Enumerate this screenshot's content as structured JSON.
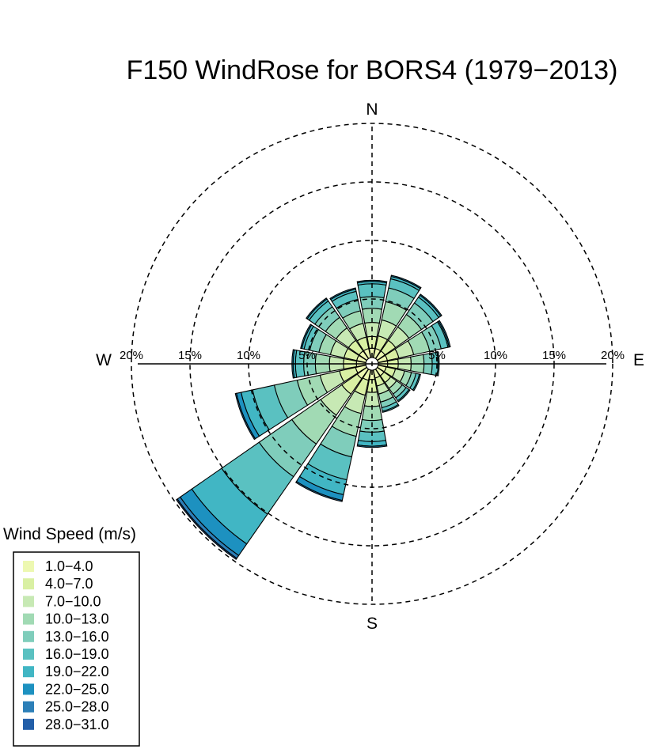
{
  "title": "F150 WindRose for BORS4 (1979−2013)",
  "compass": {
    "n": "N",
    "e": "E",
    "s": "S",
    "w": "W"
  },
  "chart_data": {
    "type": "windrose",
    "title": "F150 WindRose for BORS4 (1979−2013)",
    "radial_unit": "% frequency",
    "rings": [
      {
        "value": 5,
        "label": "5%"
      },
      {
        "value": 10,
        "label": "10%"
      },
      {
        "value": 15,
        "label": "15%"
      },
      {
        "value": 20,
        "label": "20%"
      }
    ],
    "directions": [
      "N",
      "NNE",
      "NE",
      "ENE",
      "E",
      "ESE",
      "SE",
      "SSE",
      "S",
      "SSW",
      "SW",
      "WSW",
      "W",
      "WNW",
      "NW",
      "NNW"
    ],
    "legend_title": "Wind Speed (m/s)",
    "bins": [
      "1.0−4.0",
      "4.0−7.0",
      "7.0−10.0",
      "10.0−13.0",
      "13.0−16.0",
      "16.0−19.0",
      "19.0−22.0",
      "22.0−25.0",
      "25.0−28.0",
      "28.0−31.0"
    ],
    "colors": [
      "#edf8b1",
      "#d9f0a3",
      "#c7e9b4",
      "#a1dab4",
      "#7fcdbb",
      "#5ac1c1",
      "#41b6c4",
      "#1d91c0",
      "#2c7fb8",
      "#225ea8"
    ],
    "cumulative": [
      [
        0.8,
        1.8,
        3.0,
        4.2,
        5.2,
        6.3,
        6.5,
        6.6,
        6.6,
        6.6
      ],
      [
        0.8,
        1.9,
        3.3,
        4.9,
        6.1,
        6.9,
        7.1,
        7.2,
        7.2,
        7.2
      ],
      [
        0.8,
        1.9,
        3.3,
        4.6,
        5.8,
        6.4,
        6.6,
        6.7,
        6.7,
        6.7
      ],
      [
        0.8,
        1.8,
        3.1,
        4.5,
        5.5,
        6.1,
        6.2,
        6.3,
        6.3,
        6.3
      ],
      [
        0.8,
        1.7,
        2.8,
        3.9,
        4.6,
        5.1,
        5.2,
        5.2,
        5.2,
        5.2
      ],
      [
        0.7,
        1.5,
        2.3,
        2.9,
        3.3,
        3.6,
        3.7,
        3.7,
        3.7,
        3.7
      ],
      [
        0.7,
        1.4,
        2.0,
        2.6,
        3.0,
        3.3,
        3.4,
        3.4,
        3.4,
        3.4
      ],
      [
        0.7,
        1.4,
        2.1,
        2.8,
        3.3,
        3.6,
        3.7,
        3.7,
        3.7,
        3.7
      ],
      [
        0.8,
        1.9,
        3.1,
        4.3,
        5.3,
        6.1,
        6.5,
        6.6,
        6.6,
        6.6
      ],
      [
        0.9,
        2.2,
        3.8,
        5.8,
        7.6,
        9.6,
        10.9,
        11.4,
        11.5,
        11.5
      ],
      [
        1.0,
        2.6,
        4.8,
        7.8,
        11.2,
        15.1,
        18.2,
        19.4,
        19.7,
        19.8
      ],
      [
        0.9,
        2.3,
        4.0,
        6.0,
        8.0,
        9.9,
        10.9,
        11.3,
        11.4,
        11.4
      ],
      [
        0.8,
        1.9,
        3.1,
        4.3,
        5.3,
        6.0,
        6.2,
        6.3,
        6.3,
        6.3
      ],
      [
        0.8,
        1.9,
        3.1,
        4.1,
        4.9,
        5.4,
        5.6,
        5.7,
        5.7,
        5.7
      ],
      [
        0.8,
        1.9,
        3.2,
        4.3,
        5.4,
        6.0,
        6.2,
        6.3,
        6.3,
        6.3
      ],
      [
        0.8,
        1.8,
        3.0,
        4.1,
        5.1,
        5.8,
        6.0,
        6.1,
        6.1,
        6.1
      ]
    ]
  }
}
